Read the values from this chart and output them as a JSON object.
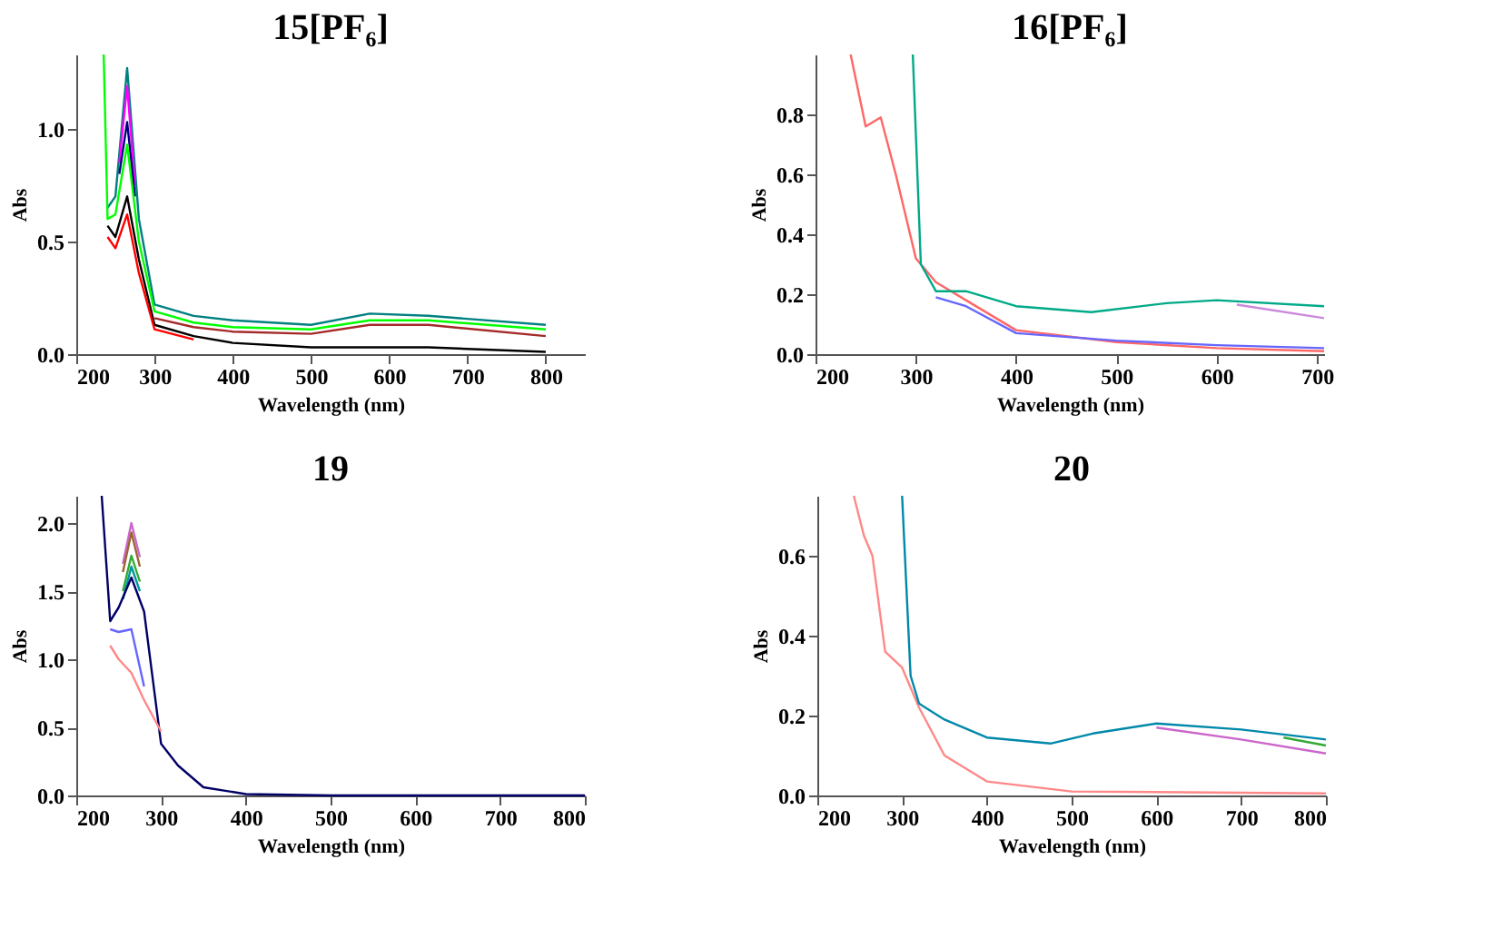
{
  "chart_data": [
    {
      "type": "line",
      "title": "15[PF₆]",
      "xlabel": "Wavelength (nm)",
      "ylabel": "Abs",
      "xlim": [
        200,
        850
      ],
      "xticks": [
        200,
        300,
        400,
        500,
        600,
        700,
        800
      ],
      "ylim": [
        0,
        1.33
      ],
      "yticks": [
        {
          "value": 0,
          "label": "0.0"
        },
        {
          "value": 0.5,
          "label": "0.5"
        },
        {
          "value": 1,
          "label": "1.0"
        }
      ],
      "grid": false,
      "legend": false,
      "line_style": "solid",
      "marker": "none",
      "series": [
        {
          "color": "#008080",
          "x": [
            240,
            250,
            265,
            280,
            300,
            350,
            400,
            500,
            575,
            650,
            800
          ],
          "values": [
            0.65,
            0.7,
            1.27,
            0.6,
            0.22,
            0.17,
            0.15,
            0.13,
            0.18,
            0.17,
            0.13
          ]
        },
        {
          "color": "#ff00ff",
          "x": [
            255,
            265,
            275
          ],
          "values": [
            0.85,
            1.19,
            0.75
          ]
        },
        {
          "color": "#000080",
          "x": [
            255,
            265,
            275
          ],
          "values": [
            0.8,
            1.03,
            0.7
          ]
        },
        {
          "color": "#00ff00",
          "x": [
            235,
            240,
            250,
            265,
            280,
            300,
            350,
            400,
            500,
            575,
            650,
            800
          ],
          "values": [
            1.33,
            0.6,
            0.62,
            0.93,
            0.5,
            0.19,
            0.14,
            0.12,
            0.11,
            0.15,
            0.15,
            0.11
          ]
        },
        {
          "color": "#a52a2a",
          "x": [
            300,
            350,
            400,
            500,
            575,
            650,
            800
          ],
          "values": [
            0.16,
            0.12,
            0.1,
            0.09,
            0.13,
            0.13,
            0.08
          ]
        },
        {
          "color": "#000000",
          "x": [
            240,
            250,
            265,
            280,
            300,
            350,
            400,
            500,
            575,
            650,
            800
          ],
          "values": [
            0.57,
            0.52,
            0.7,
            0.42,
            0.13,
            0.08,
            0.05,
            0.03,
            0.03,
            0.03,
            0.01
          ]
        },
        {
          "color": "#ff0000",
          "x": [
            240,
            250,
            265,
            280,
            300,
            350
          ],
          "values": [
            0.52,
            0.47,
            0.62,
            0.36,
            0.11,
            0.065
          ]
        }
      ]
    },
    {
      "type": "line",
      "title": "16[PF₆]",
      "xlabel": "Wavelength (nm)",
      "ylabel": "Abs",
      "xlim": [
        200,
        707
      ],
      "xticks": [
        200,
        300,
        400,
        500,
        600,
        700
      ],
      "ylim": [
        0,
        1.0
      ],
      "yticks": [
        {
          "value": 0,
          "label": "0.0"
        },
        {
          "value": 0.2,
          "label": "0.2"
        },
        {
          "value": 0.4,
          "label": "0.4"
        },
        {
          "value": 0.6,
          "label": "0.6"
        },
        {
          "value": 0.8,
          "label": "0.8"
        }
      ],
      "grid": false,
      "legend": false,
      "line_style": "solid",
      "marker": "none",
      "series": [
        {
          "color": "#ff6666",
          "x": [
            235,
            250,
            265,
            280,
            300,
            320,
            350,
            400,
            500,
            600,
            707
          ],
          "values": [
            1.0,
            0.76,
            0.79,
            0.6,
            0.32,
            0.24,
            0.18,
            0.08,
            0.04,
            0.02,
            0.01
          ]
        },
        {
          "color": "#6666ff",
          "x": [
            320,
            350,
            400,
            500,
            600,
            707
          ],
          "values": [
            0.19,
            0.16,
            0.07,
            0.045,
            0.03,
            0.02
          ]
        },
        {
          "color": "#cc88dd",
          "x": [
            620,
            707
          ],
          "values": [
            0.165,
            0.12
          ]
        },
        {
          "color": "#00aa88",
          "x": [
            297,
            305,
            320,
            350,
            400,
            475,
            550,
            600,
            707
          ],
          "values": [
            1.0,
            0.3,
            0.21,
            0.21,
            0.16,
            0.14,
            0.17,
            0.18,
            0.16
          ]
        }
      ]
    },
    {
      "type": "line",
      "title": "19",
      "xlabel": "Wavelength (nm)",
      "ylabel": "Abs",
      "xlim": [
        200,
        800
      ],
      "xticks": [
        200,
        300,
        400,
        500,
        600,
        700,
        800
      ],
      "ylim": [
        0,
        2.2
      ],
      "yticks": [
        {
          "value": 0,
          "label": "0.0"
        },
        {
          "value": 0.5,
          "label": "0.5"
        },
        {
          "value": 1,
          "label": "1.0"
        },
        {
          "value": 1.5,
          "label": "1.5"
        },
        {
          "value": 2,
          "label": "2.0"
        }
      ],
      "grid": false,
      "legend": false,
      "line_style": "solid",
      "marker": "none",
      "series": [
        {
          "color": "#cc66cc",
          "x": [
            255,
            265,
            275
          ],
          "values": [
            1.7,
            2.0,
            1.75
          ]
        },
        {
          "color": "#996633",
          "x": [
            255,
            265,
            275
          ],
          "values": [
            1.64,
            1.93,
            1.68
          ]
        },
        {
          "color": "#33aa33",
          "x": [
            255,
            265,
            275
          ],
          "values": [
            1.5,
            1.76,
            1.57
          ]
        },
        {
          "color": "#009999",
          "x": [
            255,
            265,
            275
          ],
          "values": [
            1.44,
            1.68,
            1.5
          ]
        },
        {
          "color": "#000066",
          "x": [
            230,
            240,
            250,
            265,
            280,
            300,
            320,
            350,
            400,
            500,
            800
          ],
          "values": [
            2.2,
            1.28,
            1.38,
            1.6,
            1.35,
            0.38,
            0.22,
            0.06,
            0.01,
            0,
            0
          ]
        },
        {
          "color": "#6666ff",
          "x": [
            240,
            250,
            265,
            280
          ],
          "values": [
            1.22,
            1.2,
            1.22,
            0.8
          ]
        },
        {
          "color": "#ff8888",
          "x": [
            240,
            250,
            265,
            280,
            300
          ],
          "values": [
            1.1,
            1.0,
            0.9,
            0.7,
            0.47
          ]
        }
      ]
    },
    {
      "type": "line",
      "title": "20",
      "xlabel": "Wavelength (nm)",
      "ylabel": "Abs",
      "xlim": [
        200,
        800
      ],
      "xticks": [
        200,
        300,
        400,
        500,
        600,
        700,
        800
      ],
      "ylim": [
        0,
        0.75
      ],
      "yticks": [
        {
          "value": 0,
          "label": "0.0"
        },
        {
          "value": 0.2,
          "label": "0.2"
        },
        {
          "value": 0.4,
          "label": "0.4"
        },
        {
          "value": 0.6,
          "label": "0.6"
        }
      ],
      "grid": false,
      "legend": false,
      "line_style": "solid",
      "marker": "none",
      "series": [
        {
          "color": "#ff8888",
          "x": [
            243,
            255,
            265,
            280,
            300,
            320,
            350,
            400,
            500,
            800
          ],
          "values": [
            0.75,
            0.65,
            0.6,
            0.36,
            0.32,
            0.22,
            0.1,
            0.035,
            0.01,
            0.005
          ]
        },
        {
          "color": "#cc66cc",
          "x": [
            600,
            700,
            800
          ],
          "values": [
            0.17,
            0.14,
            0.105
          ]
        },
        {
          "color": "#33aa33",
          "x": [
            750,
            800
          ],
          "values": [
            0.145,
            0.125
          ]
        },
        {
          "color": "#0088aa",
          "x": [
            300,
            310,
            320,
            350,
            400,
            475,
            525,
            600,
            700,
            800
          ],
          "values": [
            0.75,
            0.3,
            0.23,
            0.19,
            0.145,
            0.13,
            0.155,
            0.18,
            0.165,
            0.14
          ]
        }
      ]
    }
  ]
}
